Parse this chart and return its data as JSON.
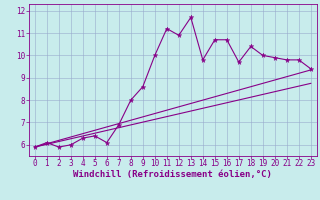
{
  "bg_color": "#c8ecec",
  "line_color": "#880088",
  "grid_color": "#99aacc",
  "xlim": [
    -0.5,
    23.5
  ],
  "ylim": [
    5.5,
    12.3
  ],
  "xticks": [
    0,
    1,
    2,
    3,
    4,
    5,
    6,
    7,
    8,
    9,
    10,
    11,
    12,
    13,
    14,
    15,
    16,
    17,
    18,
    19,
    20,
    21,
    22,
    23
  ],
  "yticks": [
    6,
    7,
    8,
    9,
    10,
    11,
    12
  ],
  "xlabel": "Windchill (Refroidissement éolien,°C)",
  "line1_x": [
    0,
    1,
    2,
    3,
    4,
    5,
    6,
    7,
    8,
    9,
    10,
    11,
    12,
    13,
    14,
    15,
    16,
    17,
    18,
    19,
    20,
    21,
    22,
    23
  ],
  "line1_y": [
    5.9,
    6.1,
    5.9,
    6.0,
    6.3,
    6.4,
    6.1,
    6.9,
    8.0,
    8.6,
    10.0,
    11.2,
    10.9,
    11.7,
    9.8,
    10.7,
    10.7,
    9.7,
    10.4,
    10.0,
    9.9,
    9.8,
    9.8,
    9.4
  ],
  "line2_x": [
    0,
    23
  ],
  "line2_y": [
    5.9,
    9.35
  ],
  "line3_x": [
    0,
    23
  ],
  "line3_y": [
    5.9,
    8.75
  ],
  "tick_fontsize": 5.5,
  "xlabel_fontsize": 6.5
}
